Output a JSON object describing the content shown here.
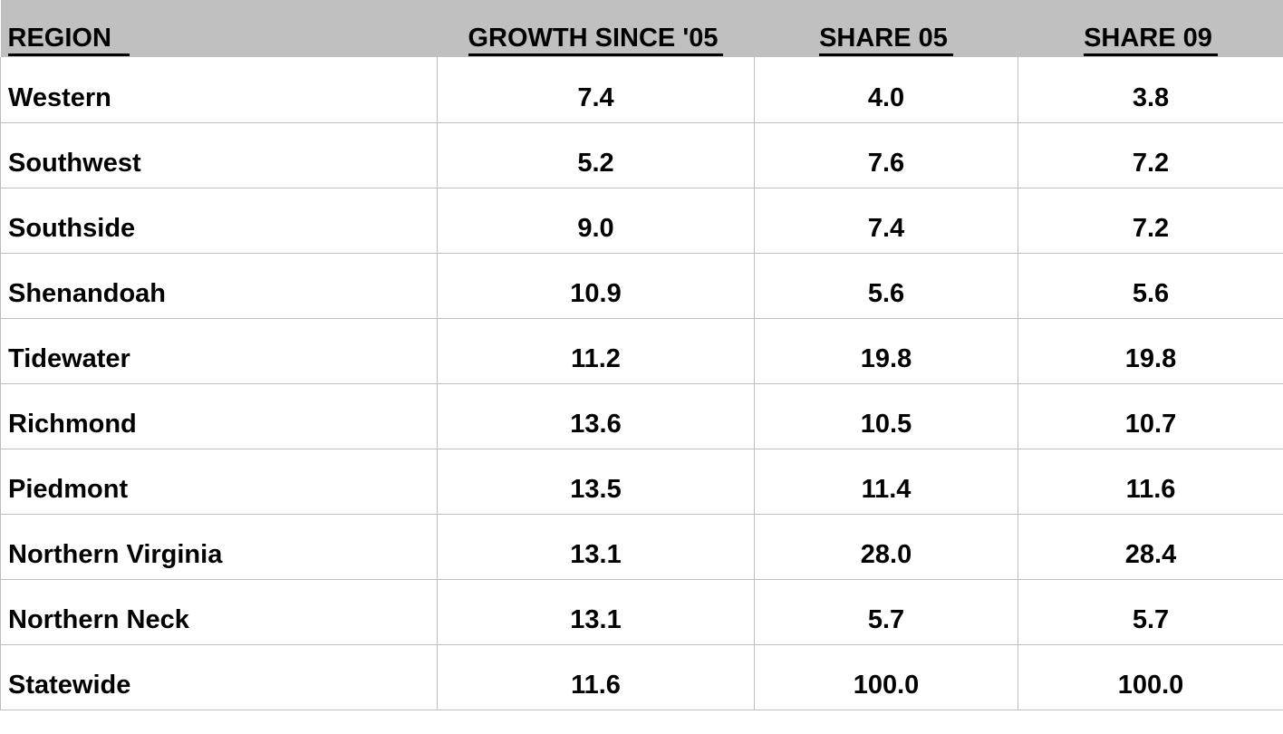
{
  "chart_data": {
    "type": "table",
    "title": "",
    "columns": [
      "REGION",
      "GROWTH SINCE '05",
      "SHARE 05",
      "SHARE 09"
    ],
    "column_alignments": [
      "left",
      "center",
      "center",
      "center"
    ],
    "rows": [
      [
        "Western",
        "7.4",
        "4.0",
        "3.8"
      ],
      [
        "Southwest",
        "5.2",
        "7.6",
        "7.2"
      ],
      [
        "Southside",
        "9.0",
        "7.4",
        "7.2"
      ],
      [
        "Shenandoah",
        "10.9",
        "5.6",
        "5.6"
      ],
      [
        "Tidewater",
        "11.2",
        "19.8",
        "19.8"
      ],
      [
        "Richmond",
        "13.6",
        "10.5",
        "10.7"
      ],
      [
        "Piedmont",
        "13.5",
        "11.4",
        "11.6"
      ],
      [
        "Northern Virginia",
        "13.1",
        "28.0",
        "28.4"
      ],
      [
        "Northern Neck",
        "13.1",
        "5.7",
        "5.7"
      ],
      [
        "Statewide",
        "11.6",
        "100.0",
        "100.0"
      ]
    ],
    "layout_hints": {
      "header_bold": true,
      "header_underlined": true,
      "body_bold": true,
      "gridlines": true
    }
  },
  "colors": {
    "header_bg": "#c0c0c0",
    "grid_line": "#bdbdbd",
    "text": "#000000",
    "row_bg": "#ffffff"
  }
}
